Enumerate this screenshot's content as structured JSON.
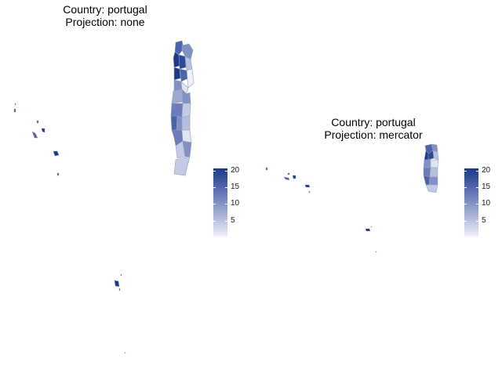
{
  "panels": [
    {
      "title_line1": "Country: portugal",
      "title_line2": "Projection: none",
      "legend_ticks": [
        "20",
        "15",
        "10",
        "5"
      ],
      "legend_min": 0,
      "legend_max": 21
    },
    {
      "title_line1": "Country: portugal",
      "title_line2": "Projection: mercator",
      "legend_ticks": [
        "20",
        "15",
        "10",
        "5"
      ],
      "legend_min": 0,
      "legend_max": 21
    }
  ],
  "colors": {
    "high": "#1a3a8a",
    "low": "#eef0fb",
    "border": "#9aa0b4"
  }
}
